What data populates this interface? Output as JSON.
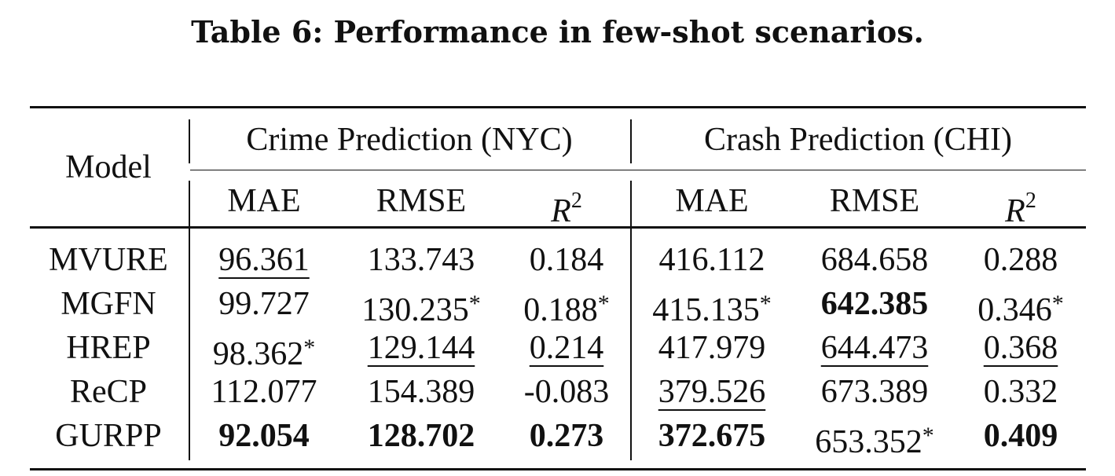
{
  "caption": "Table 6: Performance in few-shot scenarios.",
  "table": {
    "model_header": "Model",
    "groups": [
      "Crime Prediction (NYC)",
      "Crash Prediction (CHI)"
    ],
    "metrics": [
      "MAE",
      "RMSE",
      "R",
      "MAE",
      "RMSE",
      "R"
    ],
    "metric_superscripts": [
      "",
      "",
      "2",
      "",
      "",
      "2"
    ],
    "rows": [
      {
        "model": "MVURE",
        "cells": [
          {
            "v": "96.361",
            "star": "",
            "bold": false,
            "under": true
          },
          {
            "v": "133.743",
            "star": "",
            "bold": false,
            "under": false
          },
          {
            "v": "0.184",
            "star": "",
            "bold": false,
            "under": false
          },
          {
            "v": "416.112",
            "star": "",
            "bold": false,
            "under": false
          },
          {
            "v": "684.658",
            "star": "",
            "bold": false,
            "under": false
          },
          {
            "v": "0.288",
            "star": "",
            "bold": false,
            "under": false
          }
        ]
      },
      {
        "model": "MGFN",
        "cells": [
          {
            "v": "99.727",
            "star": "",
            "bold": false,
            "under": false
          },
          {
            "v": "130.235",
            "star": "*",
            "bold": false,
            "under": false
          },
          {
            "v": "0.188",
            "star": "*",
            "bold": false,
            "under": false
          },
          {
            "v": "415.135",
            "star": "*",
            "bold": false,
            "under": false
          },
          {
            "v": "642.385",
            "star": "",
            "bold": true,
            "under": false
          },
          {
            "v": "0.346",
            "star": "*",
            "bold": false,
            "under": false
          }
        ]
      },
      {
        "model": "HREP",
        "cells": [
          {
            "v": "98.362",
            "star": "*",
            "bold": false,
            "under": false
          },
          {
            "v": "129.144",
            "star": "",
            "bold": false,
            "under": true
          },
          {
            "v": "0.214",
            "star": "",
            "bold": false,
            "under": true
          },
          {
            "v": "417.979",
            "star": "",
            "bold": false,
            "under": false
          },
          {
            "v": "644.473",
            "star": "",
            "bold": false,
            "under": true
          },
          {
            "v": "0.368",
            "star": "",
            "bold": false,
            "under": true
          }
        ]
      },
      {
        "model": "ReCP",
        "cells": [
          {
            "v": "112.077",
            "star": "",
            "bold": false,
            "under": false
          },
          {
            "v": "154.389",
            "star": "",
            "bold": false,
            "under": false
          },
          {
            "v": "-0.083",
            "star": "",
            "bold": false,
            "under": false
          },
          {
            "v": "379.526",
            "star": "",
            "bold": false,
            "under": true
          },
          {
            "v": "673.389",
            "star": "",
            "bold": false,
            "under": false
          },
          {
            "v": "0.332",
            "star": "",
            "bold": false,
            "under": false
          }
        ]
      },
      {
        "model": "GURPP",
        "cells": [
          {
            "v": "92.054",
            "star": "",
            "bold": true,
            "under": false
          },
          {
            "v": "128.702",
            "star": "",
            "bold": true,
            "under": false
          },
          {
            "v": "0.273",
            "star": "",
            "bold": true,
            "under": false
          },
          {
            "v": "372.675",
            "star": "",
            "bold": true,
            "under": false
          },
          {
            "v": "653.352",
            "star": "*",
            "bold": false,
            "under": false
          },
          {
            "v": "0.409",
            "star": "",
            "bold": true,
            "under": false
          }
        ]
      }
    ]
  }
}
